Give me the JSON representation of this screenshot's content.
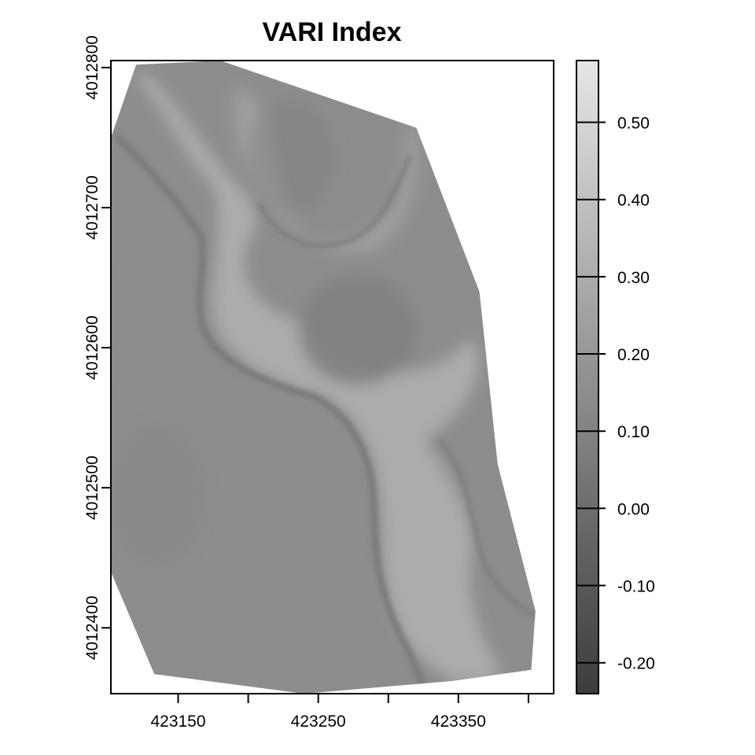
{
  "title": "VARI Index",
  "chart_data": {
    "type": "heatmap",
    "title": "VARI Index",
    "xlabel": "",
    "ylabel": "",
    "x_range": [
      423102,
      423418
    ],
    "y_range": [
      4012353,
      4012805
    ],
    "x_ticks": [
      423150,
      423200,
      423250,
      423300,
      423350,
      423400
    ],
    "x_tick_labels": [
      "423150",
      "",
      "423250",
      "",
      "423350",
      ""
    ],
    "y_ticks": [
      4012400,
      4012500,
      4012600,
      4012700,
      4012800
    ],
    "y_tick_labels": [
      "4012400",
      "4012500",
      "4012600",
      "4012700",
      "4012800"
    ],
    "raster_extent_polygon": [
      [
        423120,
        4012802
      ],
      [
        423180,
        4012805
      ],
      [
        423320,
        4012757
      ],
      [
        423365,
        4012640
      ],
      [
        423378,
        4012517
      ],
      [
        423405,
        4012412
      ],
      [
        423402,
        4012370
      ],
      [
        423345,
        4012362
      ],
      [
        423240,
        4012353
      ],
      [
        423133,
        4012367
      ],
      [
        423102,
        4012440
      ],
      [
        423102,
        4012750
      ]
    ],
    "colorbar": {
      "min": -0.24,
      "max": 0.58,
      "ticks": [
        -0.2,
        -0.1,
        0.0,
        0.1,
        0.2,
        0.3,
        0.4,
        0.5
      ],
      "tick_labels": [
        "-0.20",
        "-0.10",
        "0.00",
        "0.10",
        "0.20",
        "0.30",
        "0.40",
        "0.50"
      ],
      "color_low": "#3c3c3c",
      "color_high": "#e6e6e6"
    },
    "features": [
      {
        "name": "background-field",
        "value": 0.12
      },
      {
        "name": "light-channel-band",
        "value": 0.3
      },
      {
        "name": "dark-channel-edge",
        "value": 0.03
      },
      {
        "name": "central-dark-basin",
        "value": 0.06
      }
    ]
  }
}
